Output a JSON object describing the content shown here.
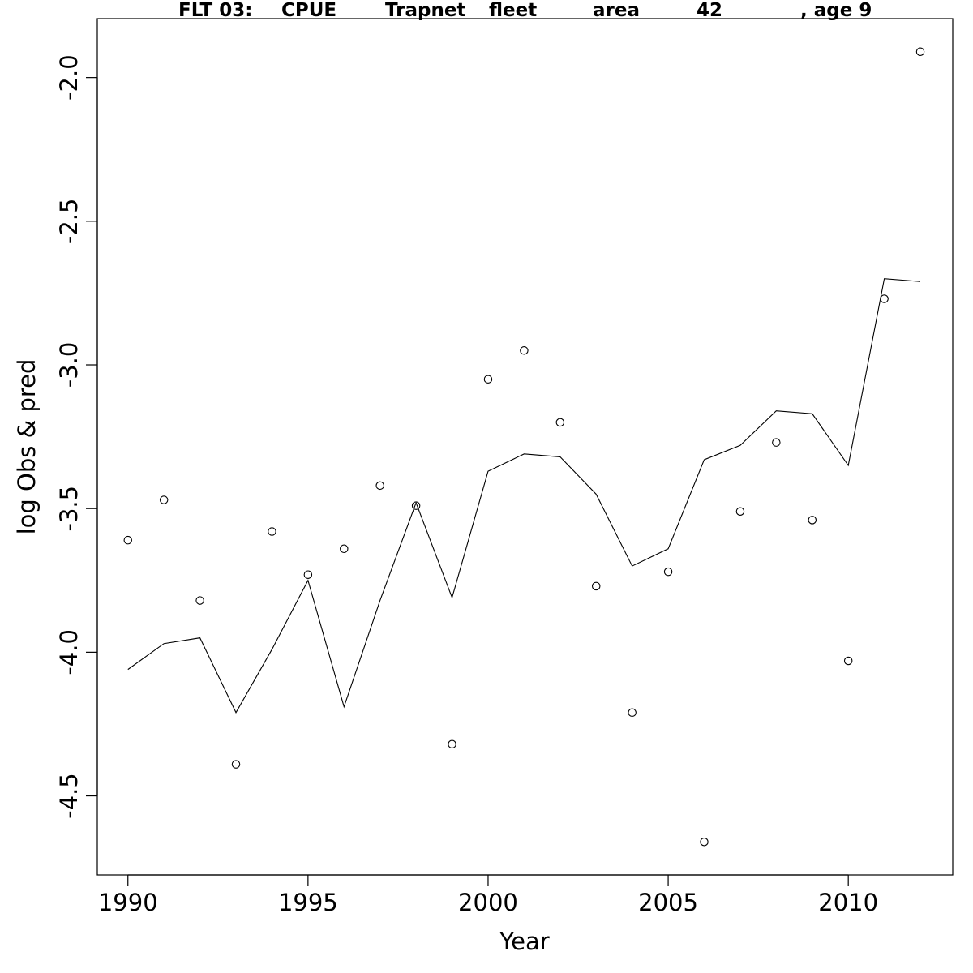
{
  "chart_data": {
    "type": "scatter",
    "title_words": [
      "FLT 03:",
      "CPUE",
      "Trapnet",
      "fleet",
      "area",
      "42",
      ", age 9"
    ],
    "xlabel": "Year",
    "ylabel": "log Obs & pred",
    "xlim": [
      1989.15,
      2012.9
    ],
    "ylim": [
      -4.775,
      -1.795
    ],
    "xticks": [
      1990,
      1995,
      2000,
      2005,
      2010
    ],
    "yticks": [
      "-2.0",
      "-2.5",
      "-3.0",
      "-3.5",
      "-4.0",
      "-4.5"
    ],
    "grid": false,
    "series": [
      {
        "kind": "points",
        "marker": "open-circle",
        "x": [
          1990,
          1991,
          1992,
          1993,
          1994,
          1995,
          1996,
          1997,
          1998,
          1999,
          2000,
          2001,
          2002,
          2003,
          2004,
          2005,
          2006,
          2007,
          2008,
          2009,
          2010,
          2011,
          2012
        ],
        "y": [
          -3.61,
          -3.47,
          -3.82,
          -4.39,
          -3.58,
          -3.73,
          -3.64,
          -3.42,
          -3.49,
          -4.32,
          -3.05,
          -2.95,
          -3.2,
          -3.77,
          -4.21,
          -3.72,
          -4.66,
          -3.51,
          -3.27,
          -3.54,
          -4.03,
          -2.77,
          -1.91
        ]
      },
      {
        "kind": "line",
        "x": [
          1990,
          1991,
          1992,
          1993,
          1994,
          1995,
          1996,
          1997,
          1998,
          1999,
          2000,
          2001,
          2002,
          2003,
          2004,
          2005,
          2006,
          2007,
          2008,
          2009,
          2010,
          2011,
          2012
        ],
        "y": [
          -4.06,
          -3.97,
          -3.95,
          -4.21,
          -3.99,
          -3.75,
          -4.19,
          -3.82,
          -3.48,
          -3.81,
          -3.37,
          -3.31,
          -3.32,
          -3.45,
          -3.7,
          -3.64,
          -3.33,
          -3.28,
          -3.16,
          -3.17,
          -3.35,
          -2.7,
          -2.71
        ]
      }
    ]
  }
}
